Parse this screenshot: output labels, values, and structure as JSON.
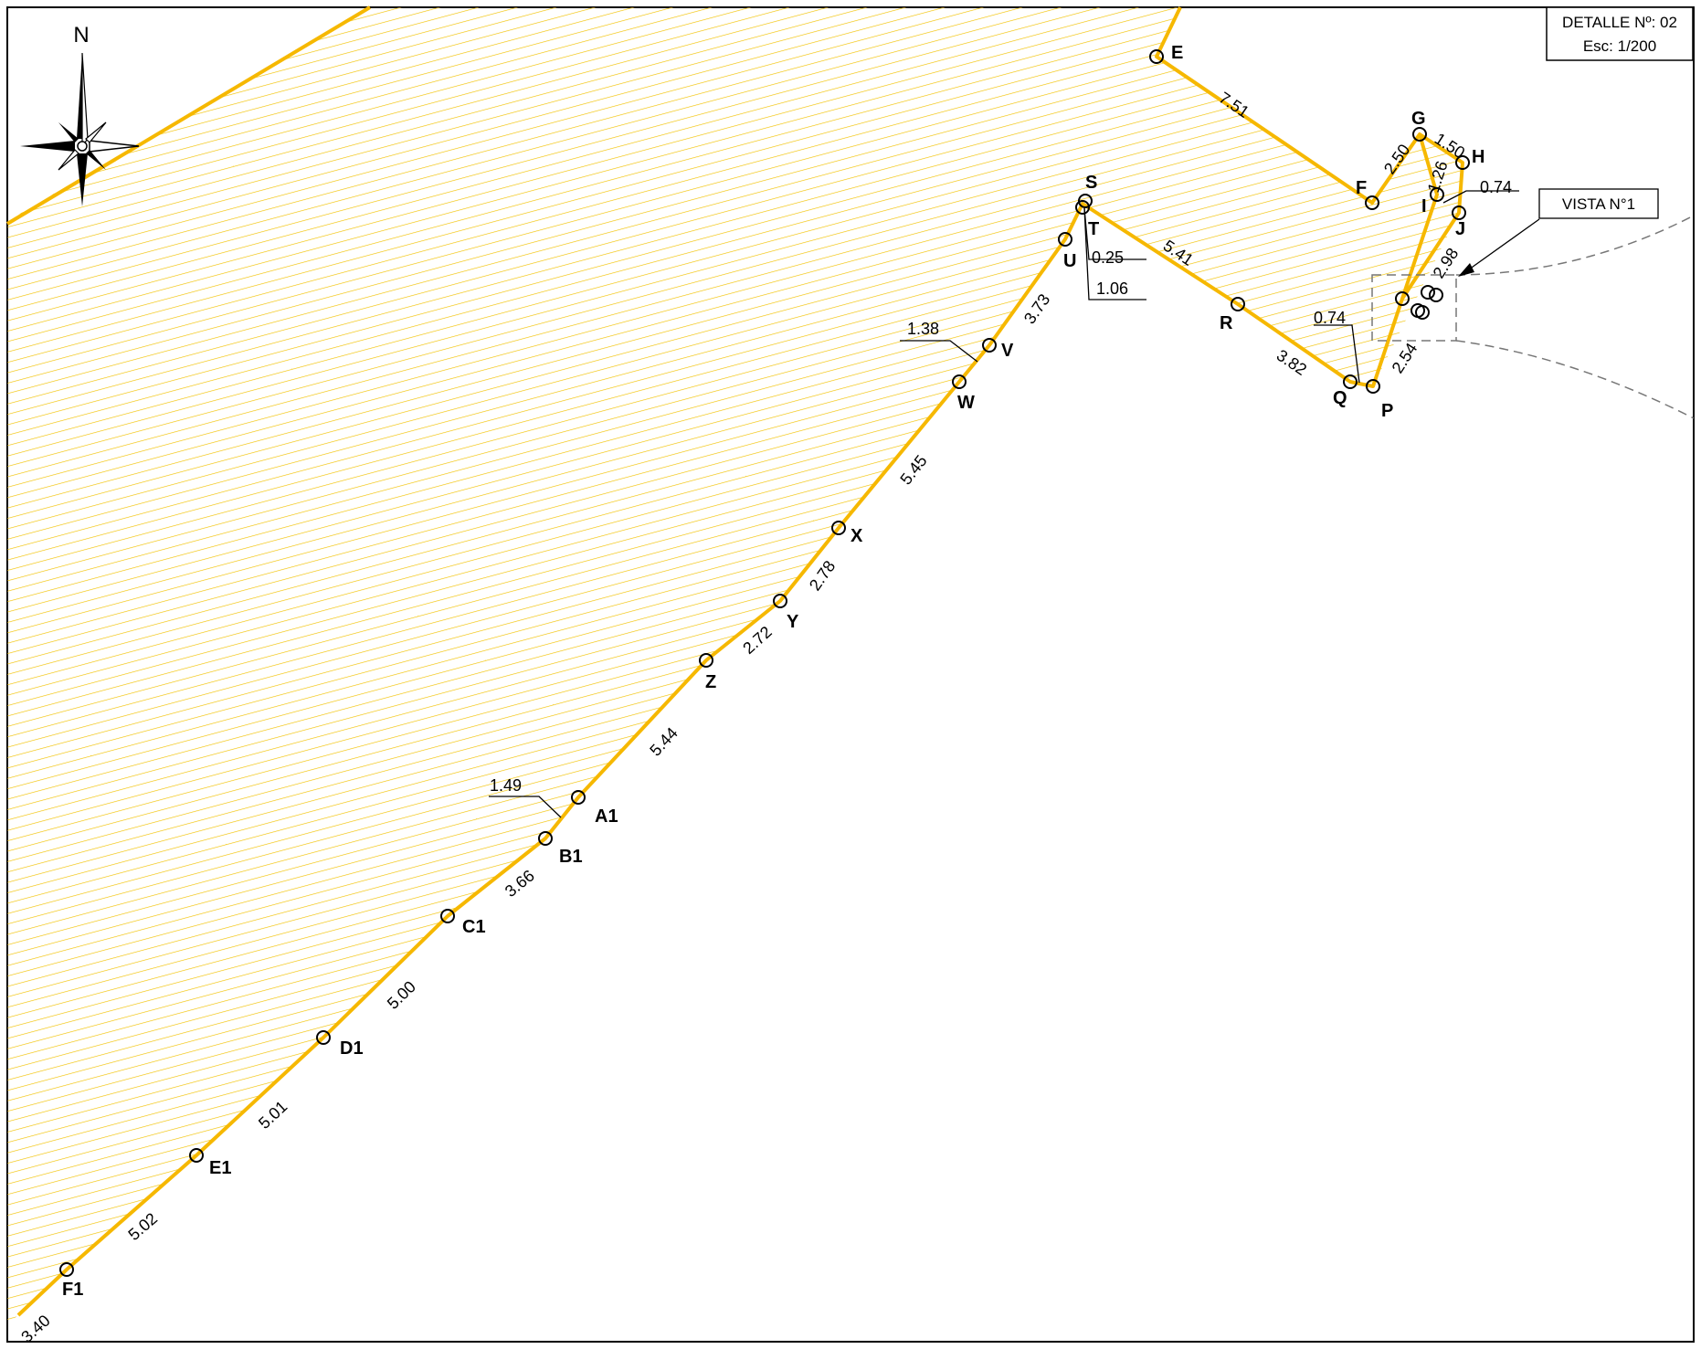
{
  "title_block": {
    "detail": "DETALLE Nº: 02",
    "scale": "Esc: 1/200"
  },
  "view_callout": "VISTA N°1",
  "north_label": "N",
  "colors": {
    "boundary": "#f6b800",
    "hatch": "#f2c200",
    "frame": "#000000",
    "dashed": "#777777"
  },
  "points": [
    "E",
    "F",
    "G",
    "H",
    "I",
    "J",
    "P",
    "Q",
    "R",
    "S",
    "T",
    "U",
    "V",
    "W",
    "X",
    "Y",
    "Z",
    "A1",
    "B1",
    "C1",
    "D1",
    "E1",
    "F1"
  ],
  "segments": [
    "7.51",
    "2.50",
    "1.50",
    "1.26",
    "0.74",
    "2.98",
    "2.54",
    "0.74",
    "3.82",
    "5.41",
    "0.25",
    "1.06",
    "3.73",
    "1.38",
    "5.45",
    "2.78",
    "2.72",
    "5.44",
    "1.49",
    "3.66",
    "5.00",
    "5.01",
    "5.02",
    "3.40"
  ]
}
